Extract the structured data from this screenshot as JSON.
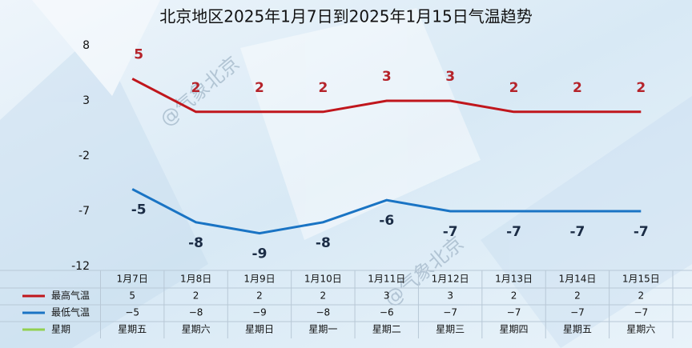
{
  "chart_data": {
    "type": "line",
    "title": "北京地区2025年1月7日到2025年1月15日气温趋势",
    "watermark": "@气象北京",
    "categories": [
      "1月7日",
      "1月8日",
      "1月9日",
      "1月10日",
      "1月11日",
      "1月12日",
      "1月13日",
      "1月14日",
      "1月15日"
    ],
    "series": [
      {
        "name": "最高气温",
        "color": "#c0161c",
        "values": [
          5,
          2,
          2,
          2,
          3,
          3,
          2,
          2,
          2
        ]
      },
      {
        "name": "最低气温",
        "color": "#1a74c4",
        "values": [
          -5,
          -8,
          -9,
          -8,
          -6,
          -7,
          -7,
          -7,
          -7
        ],
        "value_labels": [
          "−5",
          "−8",
          "−9",
          "−8",
          "−6",
          "−7",
          "−7",
          "−7",
          "−7"
        ]
      },
      {
        "name": "星期",
        "color": "#92d050",
        "labels": [
          "星期五",
          "星期六",
          "星期日",
          "星期一",
          "星期二",
          "星期三",
          "星期四",
          "星期五",
          "星期六"
        ]
      }
    ],
    "ylim": [
      -12,
      8
    ],
    "yticks": [
      8,
      3,
      -2,
      -7,
      -12
    ]
  }
}
